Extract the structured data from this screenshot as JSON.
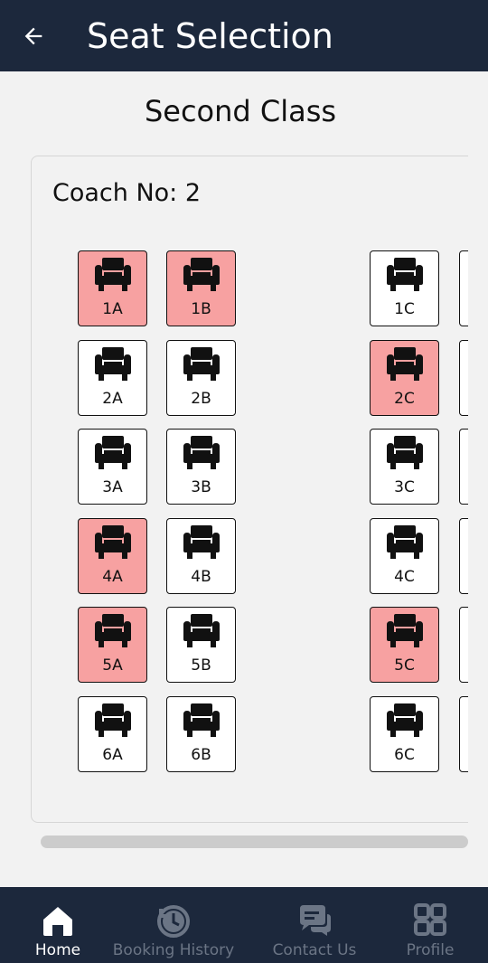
{
  "header": {
    "title": "Seat Selection"
  },
  "class_title": "Second Class",
  "coach": {
    "label": "Coach No: 2"
  },
  "seats": [
    {
      "label": "1A",
      "booked": true
    },
    {
      "label": "1B",
      "booked": true
    },
    {
      "label": "1C",
      "booked": false
    },
    {
      "label": "2A",
      "booked": false
    },
    {
      "label": "2B",
      "booked": false
    },
    {
      "label": "2C",
      "booked": true
    },
    {
      "label": "3A",
      "booked": false
    },
    {
      "label": "3B",
      "booked": false
    },
    {
      "label": "3C",
      "booked": false
    },
    {
      "label": "4A",
      "booked": true
    },
    {
      "label": "4B",
      "booked": false
    },
    {
      "label": "4C",
      "booked": false
    },
    {
      "label": "5A",
      "booked": true
    },
    {
      "label": "5B",
      "booked": false
    },
    {
      "label": "5C",
      "booked": true
    },
    {
      "label": "6A",
      "booked": false
    },
    {
      "label": "6B",
      "booked": false
    },
    {
      "label": "6C",
      "booked": false
    }
  ],
  "nav": {
    "home": "Home",
    "booking_history": "Booking History",
    "contact_us": "Contact Us",
    "profile": "Profile"
  },
  "colors": {
    "bar": "#1c283c",
    "booked": "#f7a1a1",
    "available": "#ffffff",
    "nav_inactive": "#6b7585"
  }
}
